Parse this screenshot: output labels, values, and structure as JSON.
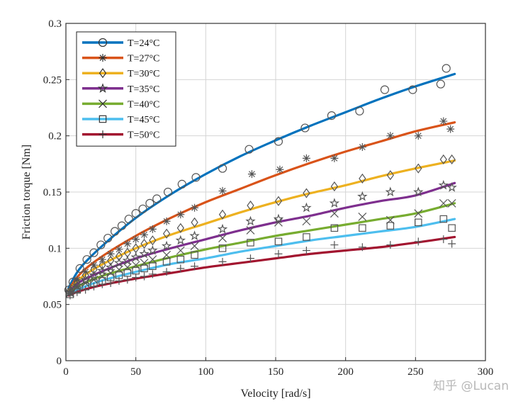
{
  "chart_data": {
    "type": "line",
    "xlabel": "Velocity [rad/s]",
    "ylabel": "Friction torque [Nm]",
    "xlim": [
      0,
      300
    ],
    "ylim": [
      0,
      0.3
    ],
    "x_ticks": [
      0,
      50,
      100,
      150,
      200,
      250,
      300
    ],
    "y_ticks": [
      0,
      0.05,
      0.1,
      0.15,
      0.2,
      0.25,
      0.3
    ],
    "x_tick_labels": [
      "0",
      "50",
      "100",
      "150",
      "200",
      "250",
      "300"
    ],
    "y_tick_labels": [
      "0",
      "0.05",
      "0.1",
      "0.15",
      "0.2",
      "0.25",
      "0.3"
    ],
    "grid": true,
    "legend_position": "top-left",
    "series": [
      {
        "name": "T=24°C",
        "color": "#0072BD",
        "marker": "circle",
        "fit": [
          [
            2,
            0.065
          ],
          [
            10,
            0.082
          ],
          [
            25,
            0.101
          ],
          [
            50,
            0.127
          ],
          [
            75,
            0.148
          ],
          [
            100,
            0.166
          ],
          [
            125,
            0.182
          ],
          [
            150,
            0.196
          ],
          [
            175,
            0.209
          ],
          [
            200,
            0.221
          ],
          [
            225,
            0.233
          ],
          [
            250,
            0.244
          ],
          [
            278,
            0.255
          ]
        ],
        "points": [
          [
            2,
            0.063
          ],
          [
            5,
            0.07
          ],
          [
            10,
            0.082
          ],
          [
            15,
            0.09
          ],
          [
            20,
            0.096
          ],
          [
            25,
            0.103
          ],
          [
            30,
            0.109
          ],
          [
            35,
            0.115
          ],
          [
            40,
            0.12
          ],
          [
            45,
            0.126
          ],
          [
            50,
            0.131
          ],
          [
            55,
            0.135
          ],
          [
            60,
            0.14
          ],
          [
            65,
            0.144
          ],
          [
            73,
            0.15
          ],
          [
            83,
            0.157
          ],
          [
            93,
            0.163
          ],
          [
            112,
            0.171
          ],
          [
            131,
            0.188
          ],
          [
            152,
            0.195
          ],
          [
            171,
            0.207
          ],
          [
            190,
            0.218
          ],
          [
            210,
            0.222
          ],
          [
            228,
            0.241
          ],
          [
            248,
            0.241
          ],
          [
            268,
            0.246
          ],
          [
            272,
            0.26
          ]
        ]
      },
      {
        "name": "T=27°C",
        "color": "#D95319",
        "marker": "asterisk",
        "fit": [
          [
            2,
            0.063
          ],
          [
            10,
            0.077
          ],
          [
            25,
            0.092
          ],
          [
            50,
            0.111
          ],
          [
            75,
            0.127
          ],
          [
            100,
            0.141
          ],
          [
            125,
            0.153
          ],
          [
            150,
            0.165
          ],
          [
            175,
            0.176
          ],
          [
            200,
            0.186
          ],
          [
            225,
            0.195
          ],
          [
            250,
            0.204
          ],
          [
            278,
            0.212
          ]
        ],
        "points": [
          [
            3,
            0.062
          ],
          [
            8,
            0.072
          ],
          [
            14,
            0.079
          ],
          [
            20,
            0.085
          ],
          [
            26,
            0.09
          ],
          [
            32,
            0.095
          ],
          [
            38,
            0.099
          ],
          [
            44,
            0.104
          ],
          [
            50,
            0.108
          ],
          [
            56,
            0.112
          ],
          [
            62,
            0.117
          ],
          [
            72,
            0.124
          ],
          [
            82,
            0.13
          ],
          [
            92,
            0.136
          ],
          [
            112,
            0.151
          ],
          [
            133,
            0.166
          ],
          [
            153,
            0.17
          ],
          [
            172,
            0.18
          ],
          [
            192,
            0.18
          ],
          [
            212,
            0.19
          ],
          [
            232,
            0.2
          ],
          [
            252,
            0.2
          ],
          [
            270,
            0.213
          ],
          [
            275,
            0.206
          ]
        ]
      },
      {
        "name": "T=30°C",
        "color": "#EDB120",
        "marker": "diamond",
        "fit": [
          [
            2,
            0.062
          ],
          [
            10,
            0.073
          ],
          [
            25,
            0.085
          ],
          [
            50,
            0.1
          ],
          [
            75,
            0.112
          ],
          [
            100,
            0.122
          ],
          [
            125,
            0.132
          ],
          [
            150,
            0.141
          ],
          [
            175,
            0.149
          ],
          [
            200,
            0.156
          ],
          [
            225,
            0.164
          ],
          [
            250,
            0.171
          ],
          [
            278,
            0.178
          ]
        ],
        "points": [
          [
            3,
            0.062
          ],
          [
            8,
            0.07
          ],
          [
            14,
            0.076
          ],
          [
            20,
            0.081
          ],
          [
            26,
            0.085
          ],
          [
            32,
            0.089
          ],
          [
            38,
            0.093
          ],
          [
            44,
            0.096
          ],
          [
            50,
            0.1
          ],
          [
            56,
            0.104
          ],
          [
            62,
            0.107
          ],
          [
            72,
            0.113
          ],
          [
            82,
            0.118
          ],
          [
            92,
            0.123
          ],
          [
            112,
            0.13
          ],
          [
            132,
            0.138
          ],
          [
            152,
            0.142
          ],
          [
            172,
            0.149
          ],
          [
            192,
            0.155
          ],
          [
            212,
            0.162
          ],
          [
            232,
            0.165
          ],
          [
            252,
            0.171
          ],
          [
            270,
            0.179
          ],
          [
            276,
            0.179
          ]
        ]
      },
      {
        "name": "T=35°C",
        "color": "#7E2F8E",
        "marker": "star",
        "fit": [
          [
            2,
            0.061
          ],
          [
            10,
            0.07
          ],
          [
            25,
            0.079
          ],
          [
            50,
            0.091
          ],
          [
            75,
            0.1
          ],
          [
            100,
            0.108
          ],
          [
            125,
            0.116
          ],
          [
            150,
            0.123
          ],
          [
            175,
            0.129
          ],
          [
            200,
            0.136
          ],
          [
            225,
            0.142
          ],
          [
            250,
            0.147
          ],
          [
            278,
            0.158
          ]
        ],
        "points": [
          [
            3,
            0.061
          ],
          [
            8,
            0.067
          ],
          [
            14,
            0.072
          ],
          [
            20,
            0.076
          ],
          [
            26,
            0.08
          ],
          [
            32,
            0.083
          ],
          [
            38,
            0.087
          ],
          [
            44,
            0.089
          ],
          [
            50,
            0.092
          ],
          [
            56,
            0.095
          ],
          [
            62,
            0.098
          ],
          [
            72,
            0.102
          ],
          [
            82,
            0.107
          ],
          [
            92,
            0.111
          ],
          [
            112,
            0.117
          ],
          [
            132,
            0.124
          ],
          [
            152,
            0.126
          ],
          [
            172,
            0.136
          ],
          [
            192,
            0.14
          ],
          [
            212,
            0.146
          ],
          [
            232,
            0.15
          ],
          [
            252,
            0.15
          ],
          [
            270,
            0.156
          ],
          [
            276,
            0.154
          ]
        ]
      },
      {
        "name": "T=40°C",
        "color": "#77AC30",
        "marker": "x",
        "fit": [
          [
            2,
            0.06
          ],
          [
            10,
            0.067
          ],
          [
            25,
            0.075
          ],
          [
            50,
            0.084
          ],
          [
            75,
            0.092
          ],
          [
            100,
            0.099
          ],
          [
            125,
            0.105
          ],
          [
            150,
            0.111
          ],
          [
            175,
            0.116
          ],
          [
            200,
            0.121
          ],
          [
            225,
            0.126
          ],
          [
            250,
            0.131
          ],
          [
            278,
            0.14
          ]
        ],
        "points": [
          [
            3,
            0.06
          ],
          [
            8,
            0.065
          ],
          [
            14,
            0.069
          ],
          [
            20,
            0.072
          ],
          [
            26,
            0.075
          ],
          [
            32,
            0.078
          ],
          [
            38,
            0.081
          ],
          [
            44,
            0.083
          ],
          [
            50,
            0.085
          ],
          [
            56,
            0.087
          ],
          [
            62,
            0.09
          ],
          [
            72,
            0.094
          ],
          [
            82,
            0.098
          ],
          [
            92,
            0.102
          ],
          [
            112,
            0.109
          ],
          [
            132,
            0.116
          ],
          [
            152,
            0.123
          ],
          [
            172,
            0.124
          ],
          [
            192,
            0.131
          ],
          [
            212,
            0.128
          ],
          [
            232,
            0.125
          ],
          [
            252,
            0.131
          ],
          [
            270,
            0.14
          ],
          [
            276,
            0.14
          ]
        ]
      },
      {
        "name": "T=45°C",
        "color": "#4DBEEE",
        "marker": "square",
        "fit": [
          [
            2,
            0.059
          ],
          [
            10,
            0.064
          ],
          [
            25,
            0.071
          ],
          [
            50,
            0.079
          ],
          [
            75,
            0.086
          ],
          [
            100,
            0.091
          ],
          [
            125,
            0.097
          ],
          [
            150,
            0.102
          ],
          [
            175,
            0.107
          ],
          [
            200,
            0.111
          ],
          [
            225,
            0.115
          ],
          [
            250,
            0.119
          ],
          [
            278,
            0.126
          ]
        ],
        "points": [
          [
            3,
            0.059
          ],
          [
            8,
            0.063
          ],
          [
            14,
            0.066
          ],
          [
            20,
            0.069
          ],
          [
            26,
            0.071
          ],
          [
            32,
            0.074
          ],
          [
            38,
            0.076
          ],
          [
            44,
            0.078
          ],
          [
            50,
            0.08
          ],
          [
            56,
            0.082
          ],
          [
            62,
            0.084
          ],
          [
            72,
            0.088
          ],
          [
            82,
            0.09
          ],
          [
            92,
            0.094
          ],
          [
            112,
            0.1
          ],
          [
            132,
            0.105
          ],
          [
            152,
            0.106
          ],
          [
            172,
            0.11
          ],
          [
            192,
            0.118
          ],
          [
            212,
            0.118
          ],
          [
            232,
            0.12
          ],
          [
            252,
            0.123
          ],
          [
            270,
            0.126
          ],
          [
            276,
            0.118
          ]
        ]
      },
      {
        "name": "T=50°C",
        "color": "#A2142F",
        "marker": "plus",
        "fit": [
          [
            2,
            0.058
          ],
          [
            10,
            0.062
          ],
          [
            25,
            0.067
          ],
          [
            50,
            0.073
          ],
          [
            75,
            0.078
          ],
          [
            100,
            0.083
          ],
          [
            125,
            0.087
          ],
          [
            150,
            0.091
          ],
          [
            175,
            0.095
          ],
          [
            200,
            0.098
          ],
          [
            225,
            0.101
          ],
          [
            250,
            0.105
          ],
          [
            278,
            0.11
          ]
        ],
        "points": [
          [
            3,
            0.058
          ],
          [
            8,
            0.061
          ],
          [
            14,
            0.063
          ],
          [
            20,
            0.066
          ],
          [
            26,
            0.068
          ],
          [
            32,
            0.069
          ],
          [
            38,
            0.071
          ],
          [
            44,
            0.072
          ],
          [
            50,
            0.074
          ],
          [
            56,
            0.075
          ],
          [
            62,
            0.077
          ],
          [
            72,
            0.079
          ],
          [
            82,
            0.082
          ],
          [
            92,
            0.084
          ],
          [
            112,
            0.088
          ],
          [
            132,
            0.091
          ],
          [
            152,
            0.095
          ],
          [
            172,
            0.098
          ],
          [
            192,
            0.103
          ],
          [
            212,
            0.101
          ],
          [
            232,
            0.103
          ],
          [
            252,
            0.106
          ],
          [
            270,
            0.108
          ],
          [
            276,
            0.104
          ]
        ]
      }
    ]
  },
  "watermark": "知乎 @Lucan"
}
